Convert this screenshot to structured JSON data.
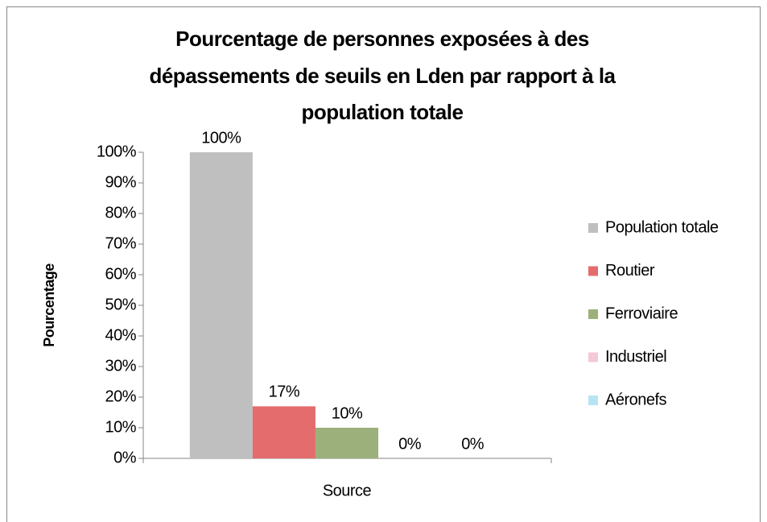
{
  "chart_data": {
    "type": "bar",
    "title": [
      "Pourcentage de personnes exposées à des",
      "dépassements de seuils en Lden par rapport à la",
      "population totale"
    ],
    "y_label": "Pourcentage",
    "x_label": "Source",
    "categories": [
      null
    ],
    "series": [
      {
        "name": "Population totale",
        "color": "#bfbfbf",
        "values": [
          100
        ],
        "value_labels": [
          "100%"
        ]
      },
      {
        "name": "Routier",
        "color": "#e46c6c",
        "values": [
          17
        ],
        "value_labels": [
          "17%"
        ]
      },
      {
        "name": "Ferroviaire",
        "color": "#9bb07a",
        "values": [
          10
        ],
        "value_labels": [
          "10%"
        ]
      },
      {
        "name": "Industriel",
        "color": "#f4c7d9",
        "values": [
          0
        ],
        "value_labels": [
          "0%"
        ]
      },
      {
        "name": "Aéronefs",
        "color": "#b7e4f4",
        "values": [
          0
        ],
        "value_labels": [
          "0%"
        ]
      }
    ],
    "ylim": [
      0,
      100
    ],
    "yticks": [
      {
        "value": 0,
        "label": "0%"
      },
      {
        "value": 10,
        "label": "10%"
      },
      {
        "value": 20,
        "label": "20%"
      },
      {
        "value": 30,
        "label": "30%"
      },
      {
        "value": 40,
        "label": "40%"
      },
      {
        "value": 50,
        "label": "50%"
      },
      {
        "value": 60,
        "label": "60%"
      },
      {
        "value": 70,
        "label": "70%"
      },
      {
        "value": 80,
        "label": "80%"
      },
      {
        "value": 90,
        "label": "90%"
      },
      {
        "value": 100,
        "label": "100%"
      }
    ],
    "legend": "right"
  }
}
